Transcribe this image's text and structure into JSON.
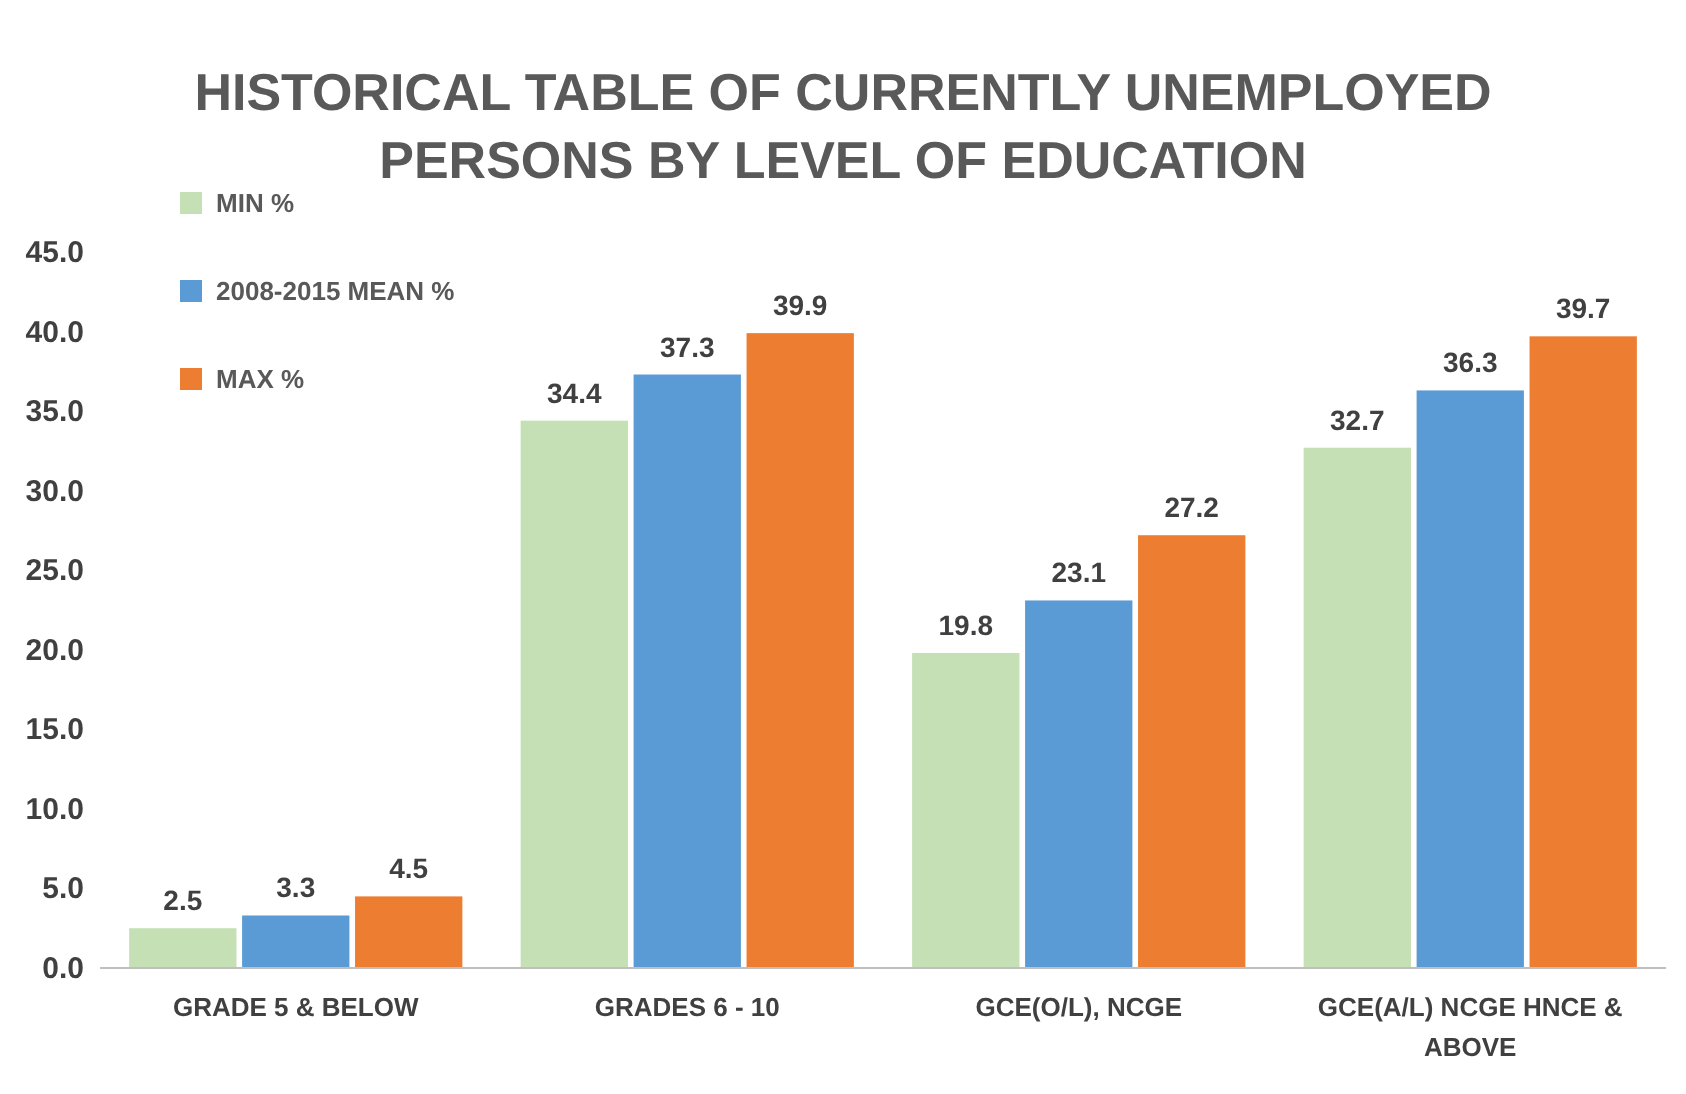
{
  "chart_data": {
    "type": "bar",
    "title": "HISTORICAL TABLE OF CURRENTLY UNEMPLOYED PERSONS BY LEVEL OF EDUCATION",
    "categories": [
      "GRADE 5 & BELOW",
      "GRADES 6 - 10",
      "GCE(O/L), NCGE",
      "GCE(A/L) NCGE HNCE & ABOVE"
    ],
    "series": [
      {
        "name": "MIN %",
        "color": "#c5e0b4",
        "values": [
          2.5,
          34.4,
          19.8,
          32.7
        ]
      },
      {
        "name": "2008-2015 MEAN %",
        "color": "#5b9bd5",
        "values": [
          3.3,
          37.3,
          23.1,
          36.3
        ]
      },
      {
        "name": "MAX %",
        "color": "#ed7d31",
        "values": [
          4.5,
          39.9,
          27.2,
          39.7
        ]
      }
    ],
    "ylim": [
      0,
      45
    ],
    "yticks": [
      {
        "value": 0,
        "label": "0.0"
      },
      {
        "value": 5,
        "label": "5.0"
      },
      {
        "value": 10,
        "label": "10.0"
      },
      {
        "value": 15,
        "label": "15.0"
      },
      {
        "value": 20,
        "label": "20.0"
      },
      {
        "value": 25,
        "label": "25.0"
      },
      {
        "value": 30,
        "label": "30.0"
      },
      {
        "value": 35,
        "label": "35.0"
      },
      {
        "value": 40,
        "label": "40.0"
      },
      {
        "value": 45,
        "label": "45.0"
      }
    ],
    "data_labels": true,
    "legend": "top left",
    "grid": false
  }
}
